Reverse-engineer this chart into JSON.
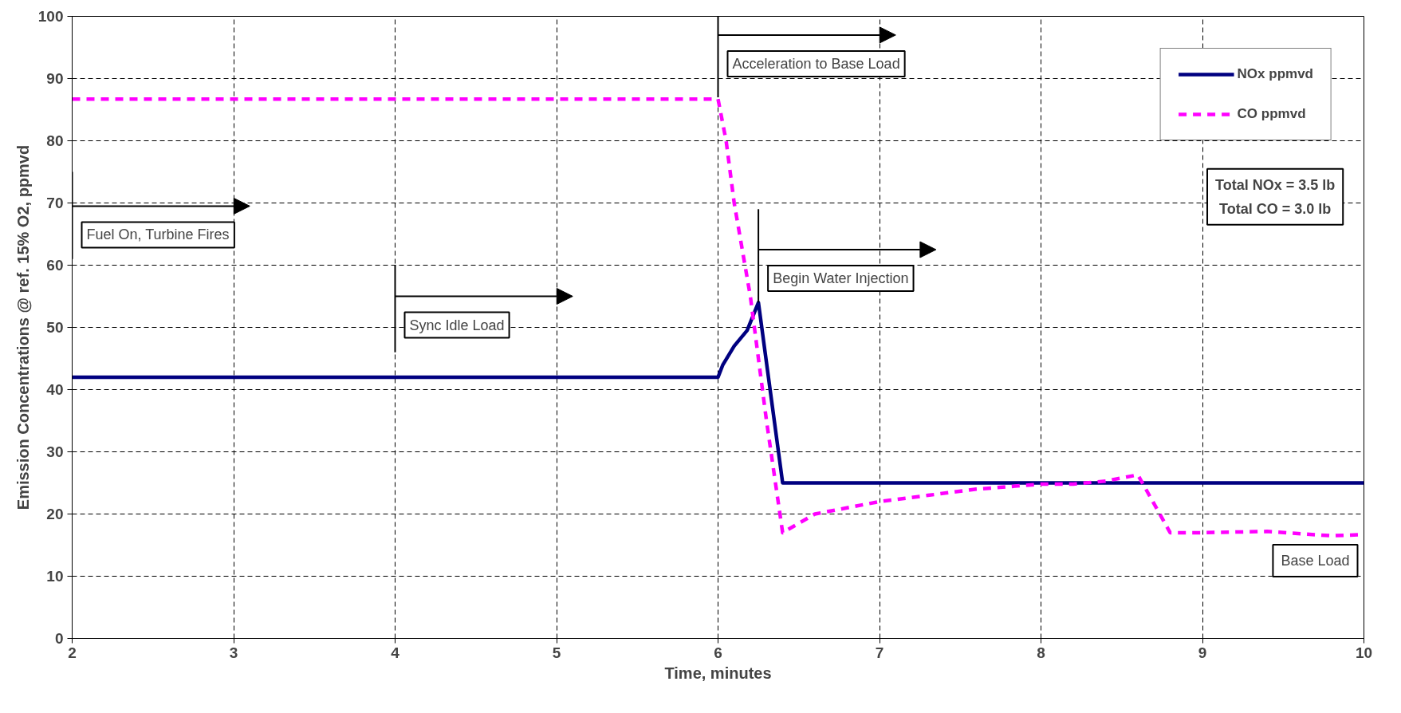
{
  "chart_data": {
    "type": "line",
    "xlabel": "Time, minutes",
    "ylabel": "Emission Concentrations @ ref. 15% O2, ppmvd",
    "xlim": [
      2,
      10
    ],
    "xticks": [
      2,
      3,
      4,
      5,
      6,
      7,
      8,
      9,
      10
    ],
    "ylim": [
      0,
      100
    ],
    "yticks": [
      0,
      10,
      20,
      30,
      40,
      50,
      60,
      70,
      80,
      90,
      100
    ],
    "grid": true,
    "legend": "top right",
    "series": [
      {
        "name": "NOx ppmvd",
        "color": "#000080",
        "line_style": "solid",
        "x": [
          2,
          6,
          6.03,
          6.1,
          6.18,
          6.25,
          6.4,
          10
        ],
        "values": [
          42,
          42,
          44,
          47,
          49.5,
          54,
          25,
          25
        ]
      },
      {
        "name": "CO ppmvd",
        "color": "#ff00ff",
        "line_style": "dashed",
        "x": [
          2,
          6,
          6.05,
          6.1,
          6.2,
          6.3,
          6.4,
          6.6,
          7,
          7.3,
          7.6,
          8,
          8.2,
          8.4,
          8.6,
          8.8,
          9,
          9.4,
          9.8,
          10
        ],
        "values": [
          86.7,
          86.7,
          80,
          70,
          55,
          35,
          17,
          20,
          22,
          23,
          24,
          24.8,
          24.8,
          25.3,
          26.3,
          17,
          17,
          17.2,
          16.5,
          16.7
        ]
      }
    ],
    "ref_lines": [
      {
        "axis": "x",
        "value": 2,
        "label": "Fuel On, Turbine Fires"
      },
      {
        "axis": "x",
        "value": 4,
        "label": "Sync Idle Load"
      },
      {
        "axis": "x",
        "value": 6,
        "label": "Acceleration to Base Load"
      },
      {
        "axis": "x",
        "value": 6.25,
        "label": "Begin Water Injection"
      }
    ],
    "annotations": [
      "Base Load",
      "Total NOx = 3.5 lb\nTotal CO = 3.0 lb"
    ]
  }
}
